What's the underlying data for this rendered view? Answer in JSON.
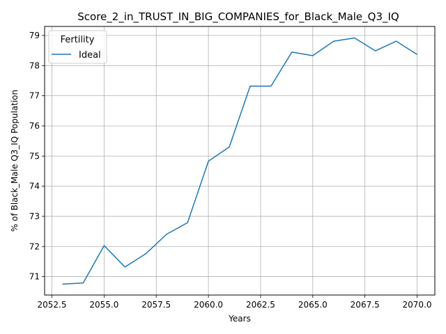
{
  "chart_data": {
    "type": "line",
    "title": "Score_2_in_TRUST_IN_BIG_COMPANIES_for_Black_Male_Q3_IQ",
    "xlabel": "Years",
    "ylabel": "% of Black_Male Q3_IQ Population",
    "xlim": [
      2052.15,
      2070.85
    ],
    "ylim": [
      70.39,
      79.3
    ],
    "xticks": [
      2052.5,
      2055.0,
      2057.5,
      2060.0,
      2062.5,
      2065.0,
      2067.5,
      2070.0
    ],
    "xtick_labels": [
      "2052.5",
      "2055.0",
      "2057.5",
      "2060.0",
      "2062.5",
      "2065.0",
      "2067.5",
      "2070.0"
    ],
    "yticks": [
      71,
      72,
      73,
      74,
      75,
      76,
      77,
      78,
      79
    ],
    "ytick_labels": [
      "71",
      "72",
      "73",
      "74",
      "75",
      "76",
      "77",
      "78",
      "79"
    ],
    "grid": true,
    "legend": {
      "title": "Fertility",
      "placement": "upper-left"
    },
    "series": [
      {
        "name": "Ideal",
        "color": "#1f77b4",
        "x": [
          2053,
          2054,
          2055,
          2056,
          2057,
          2058,
          2059,
          2060,
          2061,
          2062,
          2063,
          2064,
          2065,
          2066,
          2067,
          2068,
          2069,
          2070
        ],
        "y": [
          70.75,
          70.79,
          72.03,
          71.32,
          71.76,
          72.41,
          72.79,
          74.83,
          75.3,
          77.32,
          77.32,
          78.45,
          78.33,
          78.81,
          78.92,
          78.49,
          78.81,
          78.37
        ]
      }
    ]
  }
}
